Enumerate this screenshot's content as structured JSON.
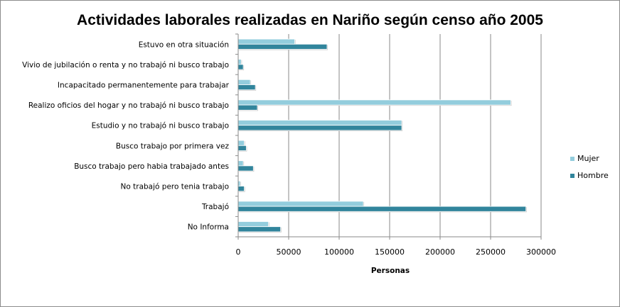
{
  "chart_data": {
    "type": "bar",
    "orientation": "horizontal",
    "title": "Actividades laborales realizadas en Nariño según censo año 2005",
    "xlabel": "Personas",
    "ylabel": "",
    "xlim": [
      0,
      300000
    ],
    "x_ticks": [
      0,
      50000,
      100000,
      150000,
      200000,
      250000,
      300000
    ],
    "x_tick_labels": [
      "0",
      "50000",
      "100000",
      "150000",
      "200000",
      "250000",
      "300000"
    ],
    "grid": true,
    "legend": "right",
    "categories": [
      "Estuvo en otra situación",
      "Vivio de jubilación  o renta y no trabajó  ni busco trabajo",
      "Incapacitado  permanentemente para  trabajar",
      "Realizo  oficios del hogar y no trabajó  ni busco trabajo",
      "Estudio y no trabajó  ni busco trabajo",
      "Busco trabajo  por  primera vez",
      "Busco trabajo pero habia trabajado  antes",
      "No trabajó  pero tenia trabajo",
      "Trabajó",
      "No Informa"
    ],
    "series": [
      {
        "name": "Mujer",
        "color": "#93cddd",
        "values": [
          56000,
          3000,
          12000,
          270000,
          162000,
          6000,
          5000,
          2000,
          124000,
          30000
        ]
      },
      {
        "name": "Hombre",
        "color": "#31859c",
        "values": [
          88000,
          5000,
          17000,
          19000,
          162000,
          8000,
          15000,
          6000,
          285000,
          42000
        ]
      }
    ]
  }
}
